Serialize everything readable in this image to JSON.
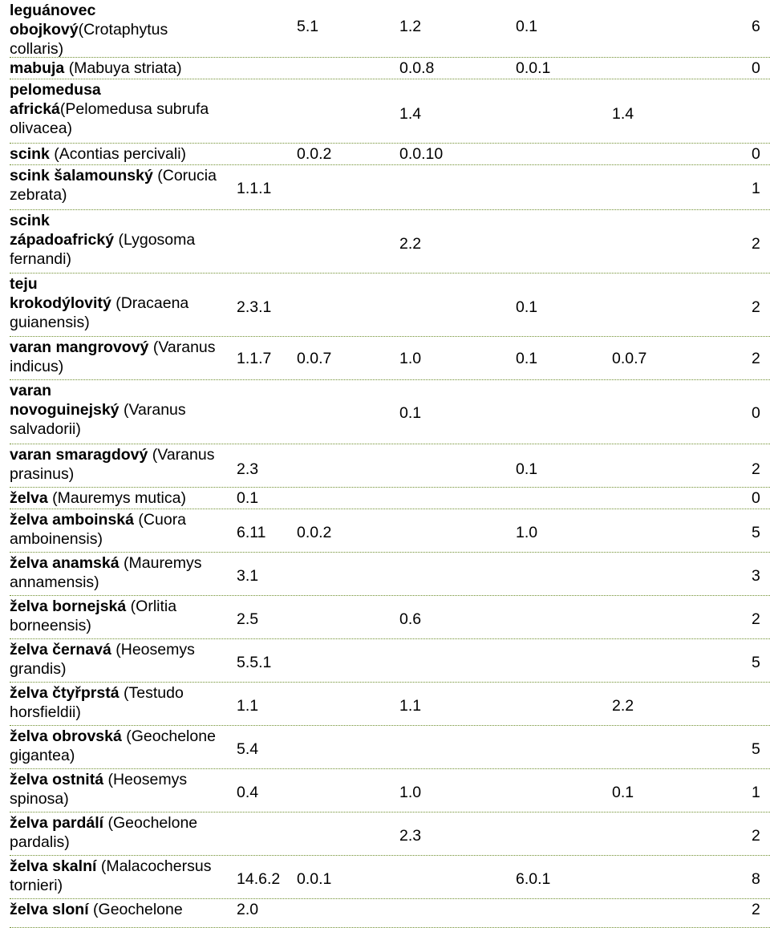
{
  "rows": [
    {
      "lines": [
        {
          "c": "leguánovec",
          "l": ""
        },
        {
          "c": "obojkový",
          "l": "(Crotaphytus"
        },
        {
          "c": "",
          "l": "collaris)"
        }
      ],
      "cells": [
        "",
        "5.1",
        "1.2",
        "0.1",
        "",
        "6"
      ]
    },
    {
      "lines": [
        {
          "c": "mabuja ",
          "l": "(Mabuya striata)"
        }
      ],
      "cells": [
        "",
        "",
        "0.0.8",
        "0.0.1",
        "",
        "0"
      ]
    },
    {
      "lines": [
        {
          "c": "pelomedusa",
          "l": ""
        },
        {
          "c": "africká",
          "l": "(Pelomedusa subrufa"
        },
        {
          "c": "",
          "l": "olivacea)"
        }
      ],
      "cells": [
        "",
        "",
        "1.4",
        "",
        "1.4",
        ""
      ]
    },
    {
      "lines": [
        {
          "c": "scink ",
          "l": "(Acontias percivali)"
        }
      ],
      "cells": [
        "",
        "0.0.2",
        "0.0.10",
        "",
        "",
        "0"
      ]
    },
    {
      "lines": [
        {
          "c": "scink šalamounský ",
          "l": "(Corucia"
        },
        {
          "c": "",
          "l": "zebrata)"
        }
      ],
      "cells": [
        "1.1.1",
        "",
        "",
        "",
        "",
        "1"
      ]
    },
    {
      "lines": [
        {
          "c": "scink",
          "l": ""
        },
        {
          "c": "západoafrický ",
          "l": "(Lygosoma"
        },
        {
          "c": "",
          "l": "fernandi)"
        }
      ],
      "cells": [
        "",
        "",
        "2.2",
        "",
        "",
        "2"
      ]
    },
    {
      "lines": [
        {
          "c": "teju",
          "l": ""
        },
        {
          "c": "krokodýlovitý ",
          "l": "(Dracaena"
        },
        {
          "c": "",
          "l": "guianensis)"
        }
      ],
      "cells": [
        "2.3.1",
        "",
        "",
        "0.1",
        "",
        "2"
      ]
    },
    {
      "lines": [
        {
          "c": "varan mangrovový ",
          "l": "(Varanus"
        },
        {
          "c": "",
          "l": "indicus)"
        }
      ],
      "cells": [
        "1.1.7",
        "0.0.7",
        "1.0",
        "0.1",
        "0.0.7",
        "2"
      ]
    },
    {
      "lines": [
        {
          "c": "varan",
          "l": ""
        },
        {
          "c": "novoguinejský ",
          "l": "(Varanus"
        },
        {
          "c": "",
          "l": "salvadorii)"
        }
      ],
      "cells": [
        "",
        "",
        "0.1",
        "",
        "",
        "0"
      ]
    },
    {
      "lines": [
        {
          "c": "varan smaragdový ",
          "l": "(Varanus"
        },
        {
          "c": "",
          "l": "prasinus)"
        }
      ],
      "cells": [
        "2.3",
        "",
        "",
        "0.1",
        "",
        "2"
      ]
    },
    {
      "lines": [
        {
          "c": "želva ",
          "l": "(Mauremys mutica)"
        }
      ],
      "cells": [
        "0.1",
        "",
        "",
        "",
        "",
        "0"
      ]
    },
    {
      "lines": [
        {
          "c": "želva amboinská ",
          "l": "(Cuora"
        },
        {
          "c": "",
          "l": "amboinensis)"
        }
      ],
      "cells": [
        "6.11",
        "0.0.2",
        "",
        "1.0",
        "",
        "5"
      ]
    },
    {
      "lines": [
        {
          "c": "želva anamská ",
          "l": "(Mauremys"
        },
        {
          "c": "",
          "l": "annamensis)"
        }
      ],
      "cells": [
        "3.1",
        "",
        "",
        "",
        "",
        "3"
      ]
    },
    {
      "lines": [
        {
          "c": "želva bornejská ",
          "l": "(Orlitia"
        },
        {
          "c": "",
          "l": "borneensis)"
        }
      ],
      "cells": [
        "2.5",
        "",
        "0.6",
        "",
        "",
        "2"
      ]
    },
    {
      "lines": [
        {
          "c": "želva černavá ",
          "l": "(Heosemys"
        },
        {
          "c": "",
          "l": "grandis)"
        }
      ],
      "cells": [
        "5.5.1",
        "",
        "",
        "",
        "",
        "5"
      ]
    },
    {
      "lines": [
        {
          "c": "želva čtyřprstá ",
          "l": "(Testudo"
        },
        {
          "c": "",
          "l": "horsfieldii)"
        }
      ],
      "cells": [
        "1.1",
        "",
        "1.1",
        "",
        "2.2",
        ""
      ]
    },
    {
      "lines": [
        {
          "c": "želva obrovská ",
          "l": "(Geochelone"
        },
        {
          "c": "",
          "l": "gigantea)"
        }
      ],
      "cells": [
        "5.4",
        "",
        "",
        "",
        "",
        "5"
      ]
    },
    {
      "lines": [
        {
          "c": "želva ostnitá ",
          "l": "(Heosemys"
        },
        {
          "c": "",
          "l": "spinosa)"
        }
      ],
      "cells": [
        "0.4",
        "",
        "1.0",
        "",
        "0.1",
        "1"
      ]
    },
    {
      "lines": [
        {
          "c": "želva pardálí ",
          "l": "(Geochelone"
        },
        {
          "c": "",
          "l": "pardalis)"
        }
      ],
      "cells": [
        "",
        "",
        "2.3",
        "",
        "",
        "2"
      ]
    },
    {
      "lines": [
        {
          "c": "želva skalní ",
          "l": "(Malacochersus"
        },
        {
          "c": "",
          "l": "tornieri)"
        }
      ],
      "cells": [
        "14.6.2",
        "0.0.1",
        "",
        "6.0.1",
        "",
        "8"
      ]
    },
    {
      "lines": [
        {
          "c": "želva sloní ",
          "l": "(Geochelone"
        }
      ],
      "cells": [
        "2.0",
        "",
        "",
        "",
        "",
        "2"
      ]
    }
  ]
}
